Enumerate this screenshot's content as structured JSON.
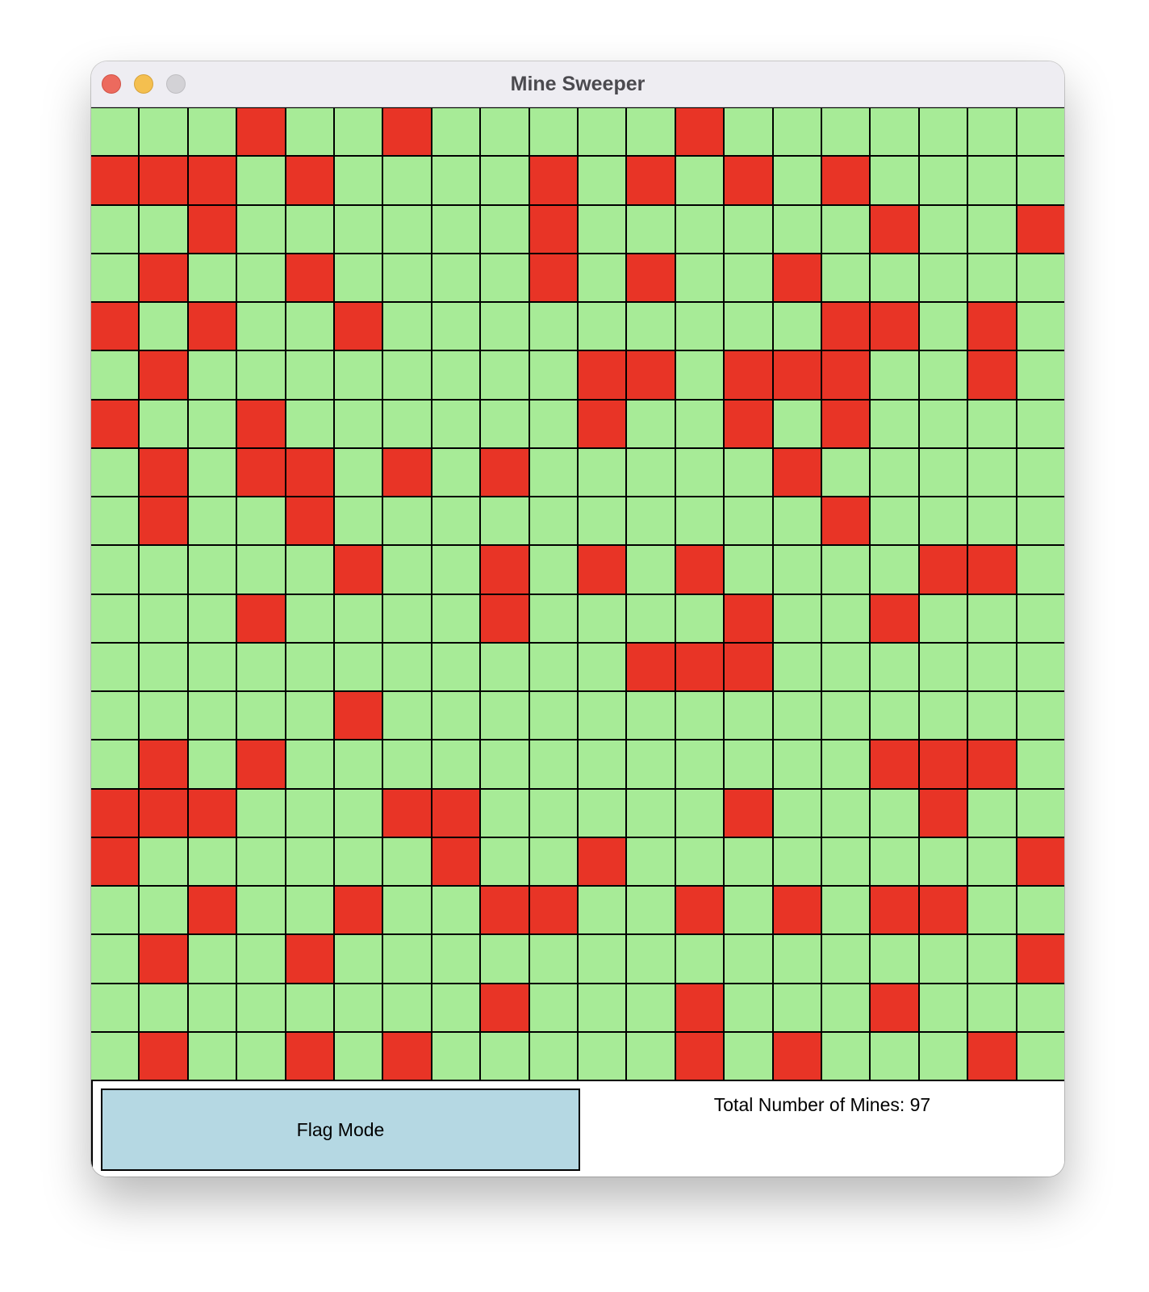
{
  "window": {
    "title": "Mine Sweeper"
  },
  "board": {
    "rows": 20,
    "cols": 20,
    "colors": {
      "unrevealed": "#a7eb97",
      "mine": "#e83426",
      "grid_line": "#000000"
    },
    "cells": [
      "...M..M.....M.......",
      "MMM.M....M.M.M.M....",
      "..M......M......M..M",
      ".M..M....M.M..M.....",
      "M.M..M.........MM.M.",
      ".M........MM.MMM..M.",
      "M..M......M..M.M....",
      ".M.MM.M.M.....M.....",
      ".M..M..........M....",
      ".....M..M.M.M....MM.",
      "...M....M....M..M...",
      "...........MMM......",
      ".....M..............",
      ".M.M............MMM.",
      "MMM...MM.....M...M..",
      "M......M..M........M",
      "..M..M..MM..M.M.MM..",
      ".M..M..............M",
      "........M...M...M...",
      ".M..M.M.....M.M...M."
    ]
  },
  "footer": {
    "flag_mode_label": "Flag Mode",
    "mine_count_text": "Total Number of Mines: 97",
    "flag_button_color": "#b5d8e3"
  }
}
